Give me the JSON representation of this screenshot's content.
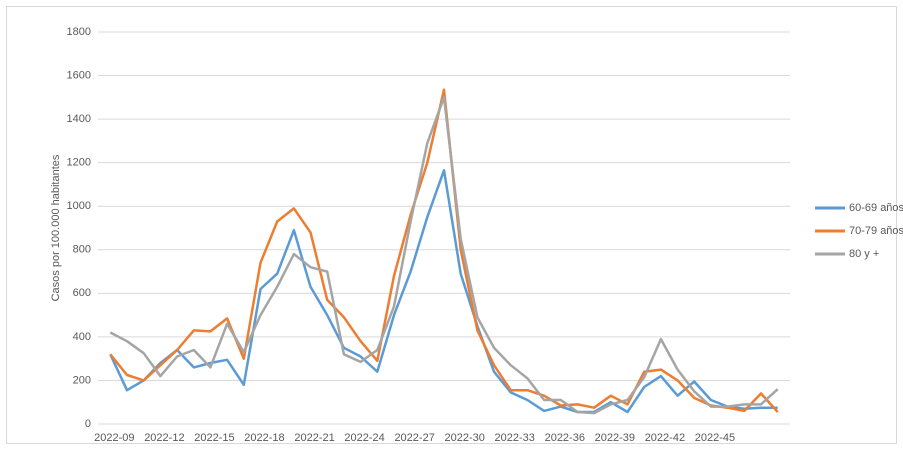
{
  "chart_data": {
    "type": "line",
    "y_label": "Casos por 100.000 habitantes",
    "categories": [
      "2022-09",
      null,
      null,
      "2022-12",
      null,
      null,
      "2022-15",
      null,
      null,
      "2022-18",
      null,
      null,
      "2022-21",
      null,
      null,
      "2022-24",
      null,
      null,
      "2022-27",
      null,
      null,
      "2022-30",
      null,
      null,
      "2022-33",
      null,
      null,
      "2022-36",
      null,
      null,
      "2022-39",
      null,
      null,
      "2022-42",
      null,
      null,
      "2022-45",
      null,
      null,
      null,
      null
    ],
    "series": [
      {
        "name": "60-69 años",
        "color": "#5b9bd5",
        "values": [
          320,
          155,
          200,
          280,
          340,
          260,
          280,
          295,
          180,
          620,
          690,
          890,
          630,
          500,
          350,
          310,
          240,
          500,
          700,
          950,
          1165,
          690,
          450,
          240,
          145,
          110,
          60,
          80,
          55,
          55,
          100,
          55,
          170,
          220,
          130,
          195,
          110,
          80,
          70,
          75,
          75
        ]
      },
      {
        "name": "70-79 años",
        "color": "#ed7d31",
        "values": [
          320,
          225,
          200,
          270,
          340,
          430,
          425,
          485,
          300,
          740,
          930,
          990,
          880,
          570,
          490,
          380,
          290,
          680,
          960,
          1200,
          1535,
          800,
          430,
          270,
          155,
          155,
          130,
          85,
          90,
          75,
          130,
          90,
          240,
          250,
          200,
          120,
          85,
          75,
          60,
          140,
          55
        ]
      },
      {
        "name": "80 y +",
        "color": "#a5a5a5",
        "values": [
          420,
          380,
          325,
          220,
          310,
          340,
          260,
          460,
          330,
          500,
          630,
          780,
          720,
          700,
          320,
          285,
          340,
          540,
          930,
          1290,
          1500,
          850,
          490,
          350,
          270,
          210,
          110,
          110,
          55,
          50,
          90,
          110,
          215,
          390,
          250,
          150,
          80,
          80,
          90,
          90,
          160
        ]
      }
    ],
    "ylim": [
      0,
      1800
    ],
    "yticks": [
      0,
      200,
      400,
      600,
      800,
      1000,
      1200,
      1400,
      1600,
      1800
    ],
    "grid": true,
    "legend": "right"
  }
}
